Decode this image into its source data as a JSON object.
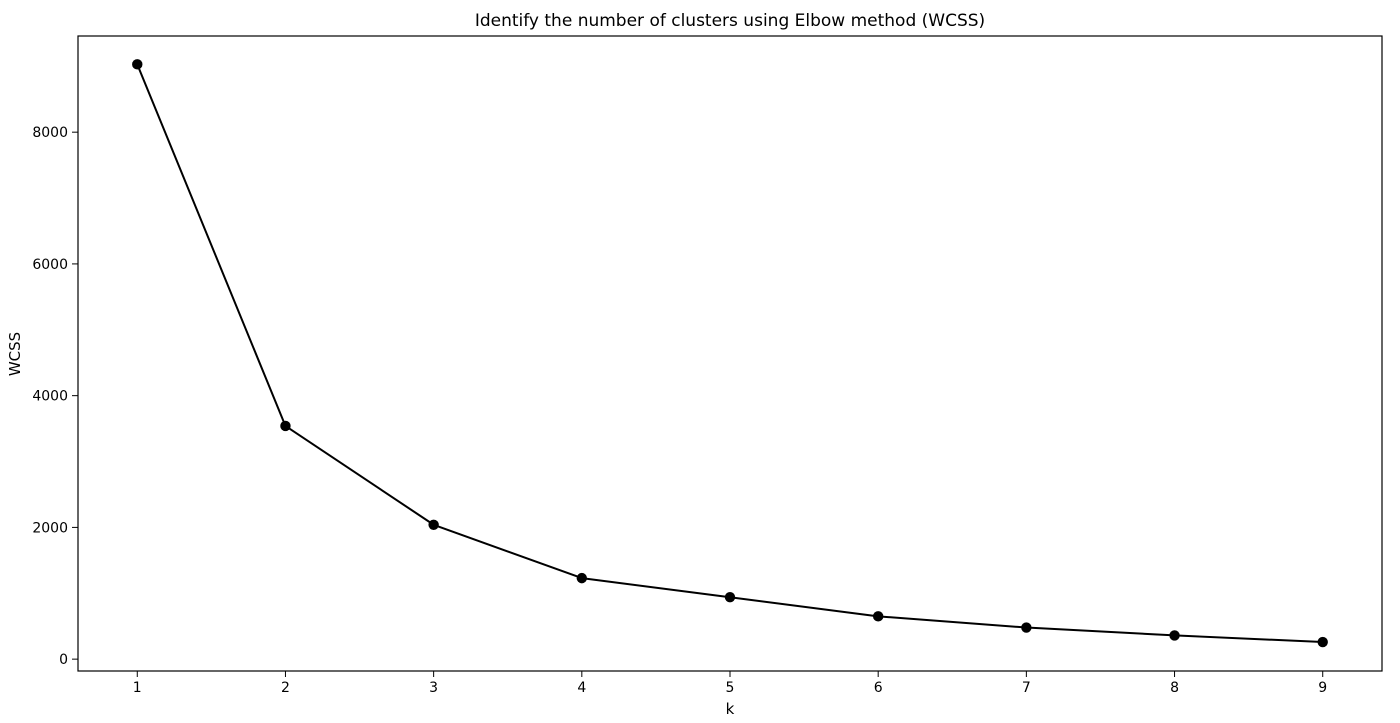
{
  "chart_data": {
    "type": "line",
    "title": "Identify the number of clusters using Elbow method (WCSS)",
    "xlabel": "k",
    "ylabel": "WCSS",
    "x": [
      1,
      2,
      3,
      4,
      5,
      6,
      7,
      8,
      9
    ],
    "series": [
      {
        "values": [
          9030,
          3540,
          2040,
          1230,
          940,
          650,
          480,
          360,
          260
        ]
      }
    ],
    "xlim": [
      0.6,
      9.4
    ],
    "ylim": [
      -180,
      9460
    ],
    "xticks": [
      "1",
      "2",
      "3",
      "4",
      "5",
      "6",
      "7",
      "8",
      "9"
    ],
    "yticks": [
      "0",
      "2000",
      "4000",
      "6000",
      "8000"
    ],
    "grid": false,
    "legend": "none",
    "line_color": "#000000",
    "marker": "circle"
  }
}
